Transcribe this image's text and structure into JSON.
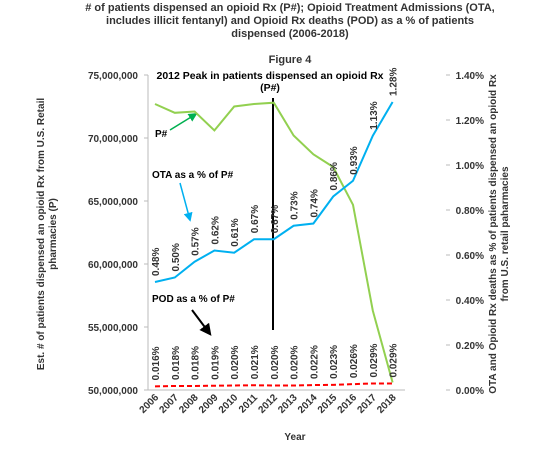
{
  "chart_data": {
    "type": "line",
    "title": "# of patients dispensed an opioid Rx (P#); Opioid Treatment Admissions (OTA, includes illicit fentanyl) and Opioid Rx deaths (POD) as a % of patients dispensed (2006-2018)",
    "subtitle": "Figure 4",
    "x_label": "Year",
    "y_label": "Est. # of patients dispensed an opioid Rx from U.S. Retail pharmacies (P)",
    "y2_label": "OTA and Opioid Rx deaths as % of patients dispensed an opioid Rx from U.S. retail paharmacies",
    "annotation": "2012 Peak in patients dispensed an opioid Rx (P#)",
    "categories": [
      "2006",
      "2007",
      "2008",
      "2009",
      "2010",
      "2011",
      "2012",
      "2013",
      "2014",
      "2015",
      "2016",
      "2017",
      "2018"
    ],
    "ylim": [
      50000000,
      75000000
    ],
    "yticks": [
      {
        "value": 50000000,
        "label": "50,000,000"
      },
      {
        "value": 55000000,
        "label": "55,000,000"
      },
      {
        "value": 60000000,
        "label": "60,000,000"
      },
      {
        "value": 65000000,
        "label": "65,000,000"
      },
      {
        "value": 70000000,
        "label": "70,000,000"
      },
      {
        "value": 75000000,
        "label": "75,000,000"
      }
    ],
    "y2lim": [
      0,
      1.4
    ],
    "y2ticks": [
      {
        "value": 0,
        "label": "0.00%"
      },
      {
        "value": 0.2,
        "label": "0.20%"
      },
      {
        "value": 0.4,
        "label": "0.40%"
      },
      {
        "value": 0.6,
        "label": "0.60%"
      },
      {
        "value": 0.8,
        "label": "0.80%"
      },
      {
        "value": 1.0,
        "label": "1.00%"
      },
      {
        "value": 1.2,
        "label": "1.20%"
      },
      {
        "value": 1.4,
        "label": "1.40%"
      }
    ],
    "series": [
      {
        "name": "P#",
        "color": "#92d050",
        "values": [
          72700000,
          72000000,
          72100000,
          70600000,
          72500000,
          72700000,
          72800000,
          70200000,
          68700000,
          67700000,
          64700000,
          56300000,
          50600000
        ]
      },
      {
        "name": "OTA as a % of P#",
        "color": "#00b0f0",
        "axis": "y2",
        "values": [
          0.48,
          0.5,
          0.57,
          0.62,
          0.61,
          0.67,
          0.67,
          0.73,
          0.74,
          0.86,
          0.93,
          1.13,
          1.28
        ],
        "value_labels": [
          "0.48%",
          "0.50%",
          "0.57%",
          "0.62%",
          "0.61%",
          "0.67%",
          "0.67%",
          "0.73%",
          "0.74%",
          "0.86%",
          "0.93%",
          "1.13%",
          "1.28%"
        ]
      },
      {
        "name": "POD as a % of P#",
        "color": "#ff0000",
        "axis": "y2",
        "dashed": true,
        "values": [
          0.016,
          0.018,
          0.018,
          0.019,
          0.02,
          0.021,
          0.02,
          0.02,
          0.022,
          0.023,
          0.026,
          0.029,
          0.029
        ],
        "value_labels": [
          "0.016%",
          "0.018%",
          "0.018%",
          "0.019%",
          "0.020%",
          "0.021%",
          "0.020%",
          "0.020%",
          "0.022%",
          "0.023%",
          "0.026%",
          "0.029%",
          "0.029%"
        ]
      }
    ]
  }
}
